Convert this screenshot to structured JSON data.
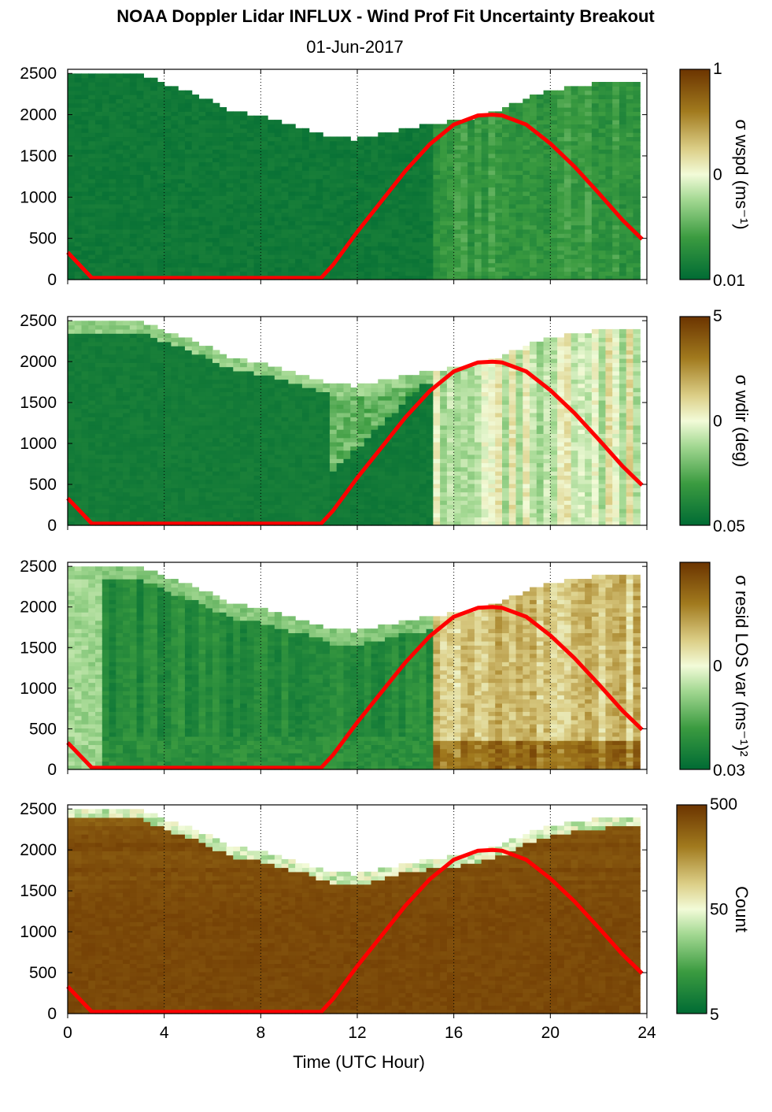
{
  "title": "NOAA Doppler Lidar INFLUX - Wind Prof Fit Uncertainty Breakout",
  "subtitle": "01-Jun-2017",
  "xlabel": "Time (UTC Hour)",
  "colors": {
    "sun_line": "#ff0000",
    "cmap_low": "#006b34",
    "cmap_mid": "#f2fbd8",
    "cmap_high": "#6b3400"
  },
  "chart_data": [
    {
      "type": "heatmap",
      "panel": 1,
      "colorbar_label": "σ wspd (ms⁻¹)",
      "colorbar_ticks": [
        "1",
        "0",
        "0.01"
      ],
      "xlim": [
        0,
        24
      ],
      "ylim": [
        0,
        2550
      ],
      "xticks": [
        "0",
        "4",
        "8",
        "12",
        "16",
        "20",
        "24"
      ],
      "yticks": [
        "0",
        "500",
        "1000",
        "1500",
        "2000",
        "2500"
      ],
      "series": [
        {
          "type": "line",
          "x": [
            0,
            1,
            10.5,
            11,
            12,
            13,
            14,
            15,
            16,
            17,
            17.6,
            18,
            19,
            20,
            21,
            22,
            23,
            23.8
          ],
          "y": [
            330,
            20,
            20,
            180,
            580,
            950,
            1320,
            1640,
            1880,
            1990,
            2000,
            1990,
            1880,
            1650,
            1370,
            1050,
            720,
            490
          ]
        }
      ]
    },
    {
      "type": "heatmap",
      "panel": 2,
      "colorbar_label": "σ wdir (deg)",
      "colorbar_ticks": [
        "5",
        "0",
        "0.05"
      ],
      "xlim": [
        0,
        24
      ],
      "ylim": [
        0,
        2550
      ],
      "xticks": [
        "0",
        "4",
        "8",
        "12",
        "16",
        "20",
        "24"
      ],
      "yticks": [
        "0",
        "500",
        "1000",
        "1500",
        "2000",
        "2500"
      ],
      "series": [
        {
          "type": "line",
          "x": [
            0,
            1,
            10.5,
            11,
            12,
            13,
            14,
            15,
            16,
            17,
            17.6,
            18,
            19,
            20,
            21,
            22,
            23,
            23.8
          ],
          "y": [
            330,
            20,
            20,
            180,
            580,
            950,
            1320,
            1640,
            1880,
            1990,
            2000,
            1990,
            1880,
            1650,
            1370,
            1050,
            720,
            490
          ]
        }
      ]
    },
    {
      "type": "heatmap",
      "panel": 3,
      "colorbar_label": "σ resid LOS var (ms⁻¹)²",
      "colorbar_ticks": [
        "",
        "0",
        "0.03"
      ],
      "xlim": [
        0,
        24
      ],
      "ylim": [
        0,
        2550
      ],
      "xticks": [
        "0",
        "4",
        "8",
        "12",
        "16",
        "20",
        "24"
      ],
      "yticks": [
        "0",
        "500",
        "1000",
        "1500",
        "2000",
        "2500"
      ],
      "series": [
        {
          "type": "line",
          "x": [
            0,
            1,
            10.5,
            11,
            12,
            13,
            14,
            15,
            16,
            17,
            17.6,
            18,
            19,
            20,
            21,
            22,
            23,
            23.8
          ],
          "y": [
            330,
            20,
            20,
            180,
            580,
            950,
            1320,
            1640,
            1880,
            1990,
            2000,
            1990,
            1880,
            1650,
            1370,
            1050,
            720,
            490
          ]
        }
      ]
    },
    {
      "type": "heatmap",
      "panel": 4,
      "colorbar_label": "Count",
      "colorbar_ticks": [
        "500",
        "50",
        "5"
      ],
      "xlim": [
        0,
        24
      ],
      "ylim": [
        0,
        2550
      ],
      "xticks": [
        "0",
        "4",
        "8",
        "12",
        "16",
        "20",
        "24"
      ],
      "yticks": [
        "0",
        "500",
        "1000",
        "1500",
        "2000",
        "2500"
      ],
      "series": [
        {
          "type": "line",
          "x": [
            0,
            1,
            10.5,
            11,
            12,
            13,
            14,
            15,
            16,
            17,
            17.6,
            18,
            19,
            20,
            21,
            22,
            23,
            23.8
          ],
          "y": [
            330,
            20,
            20,
            180,
            580,
            950,
            1320,
            1640,
            1880,
            1990,
            2000,
            1990,
            1880,
            1650,
            1370,
            1050,
            720,
            490
          ]
        }
      ]
    }
  ],
  "data_top": {
    "hours": [
      0,
      1,
      2,
      3,
      3.5,
      4,
      5,
      6,
      7,
      8,
      9,
      10,
      11,
      12,
      13,
      14,
      15,
      16,
      17,
      18,
      19,
      20,
      21,
      22,
      23,
      23.8
    ],
    "alt": [
      2500,
      2500,
      2500,
      2500,
      2450,
      2380,
      2280,
      2150,
      2030,
      1990,
      1900,
      1820,
      1720,
      1700,
      1760,
      1840,
      1880,
      1920,
      1970,
      2050,
      2210,
      2290,
      2340,
      2380,
      2420,
      2400
    ]
  }
}
